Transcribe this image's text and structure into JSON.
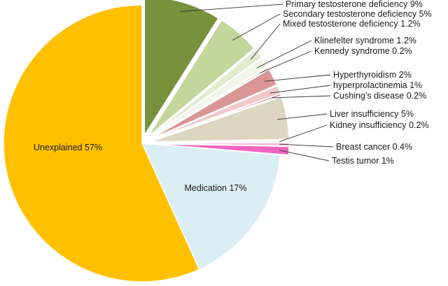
{
  "chart_data": {
    "type": "pie",
    "title": "",
    "slices": [
      {
        "label": "Primary testosterone deficiency",
        "value_text": "9%",
        "value": 9,
        "color": "#76923c",
        "exploded": true,
        "label_position": "outside"
      },
      {
        "label": "Secondary testosterone deficiency",
        "value_text": "5%",
        "value": 5,
        "color": "#c3d69b",
        "exploded": true,
        "label_position": "outside"
      },
      {
        "label": "Mixed testosterone deficiency",
        "value_text": "1.2%",
        "value": 1.2,
        "color": "#e2ebd0",
        "exploded": true,
        "label_position": "outside"
      },
      {
        "label": "Klinefelter syndrome",
        "value_text": "1.2%",
        "value": 1.2,
        "color": "#f1f5e7",
        "exploded": true,
        "label_position": "outside"
      },
      {
        "label": "Kennedy syndrome",
        "value_text": "0.2%",
        "value": 0.2,
        "color": "#e6b9b8",
        "exploded": true,
        "label_position": "outside"
      },
      {
        "label": "Hyperthyroidism",
        "value_text": "2%",
        "value": 2,
        "color": "#d99694",
        "exploded": true,
        "label_position": "outside"
      },
      {
        "label": "hyperprolactinemia",
        "value_text": "1%",
        "value": 1,
        "color": "#f2c9c8",
        "exploded": true,
        "label_position": "outside"
      },
      {
        "label": "Cushing’s disease",
        "value_text": "0.2%",
        "value": 0.2,
        "color": "#c0504d",
        "exploded": true,
        "label_position": "outside"
      },
      {
        "label": "Liver insufficiency",
        "value_text": "5%",
        "value": 5,
        "color": "#ddd6c0",
        "exploded": true,
        "label_position": "outside"
      },
      {
        "label": "Kidney insufficiency",
        "value_text": "0.2%",
        "value": 0.2,
        "color": "#eeece1",
        "exploded": true,
        "label_position": "outside"
      },
      {
        "label": "Breast cancer",
        "value_text": "0.4%",
        "value": 0.4,
        "color": "#f7b6d9",
        "exploded": true,
        "label_position": "outside"
      },
      {
        "label": "Testis tumor",
        "value_text": "1%",
        "value": 1,
        "color": "#f064c0",
        "exploded": true,
        "label_position": "outside"
      },
      {
        "label": "Medication",
        "value_text": "17%",
        "value": 17,
        "color": "#dbeef4",
        "exploded": false,
        "label_position": "inside"
      },
      {
        "label": "Unexplained",
        "value_text": "57%",
        "value": 57,
        "color": "#ffc000",
        "exploded": false,
        "label_position": "inside"
      }
    ]
  }
}
